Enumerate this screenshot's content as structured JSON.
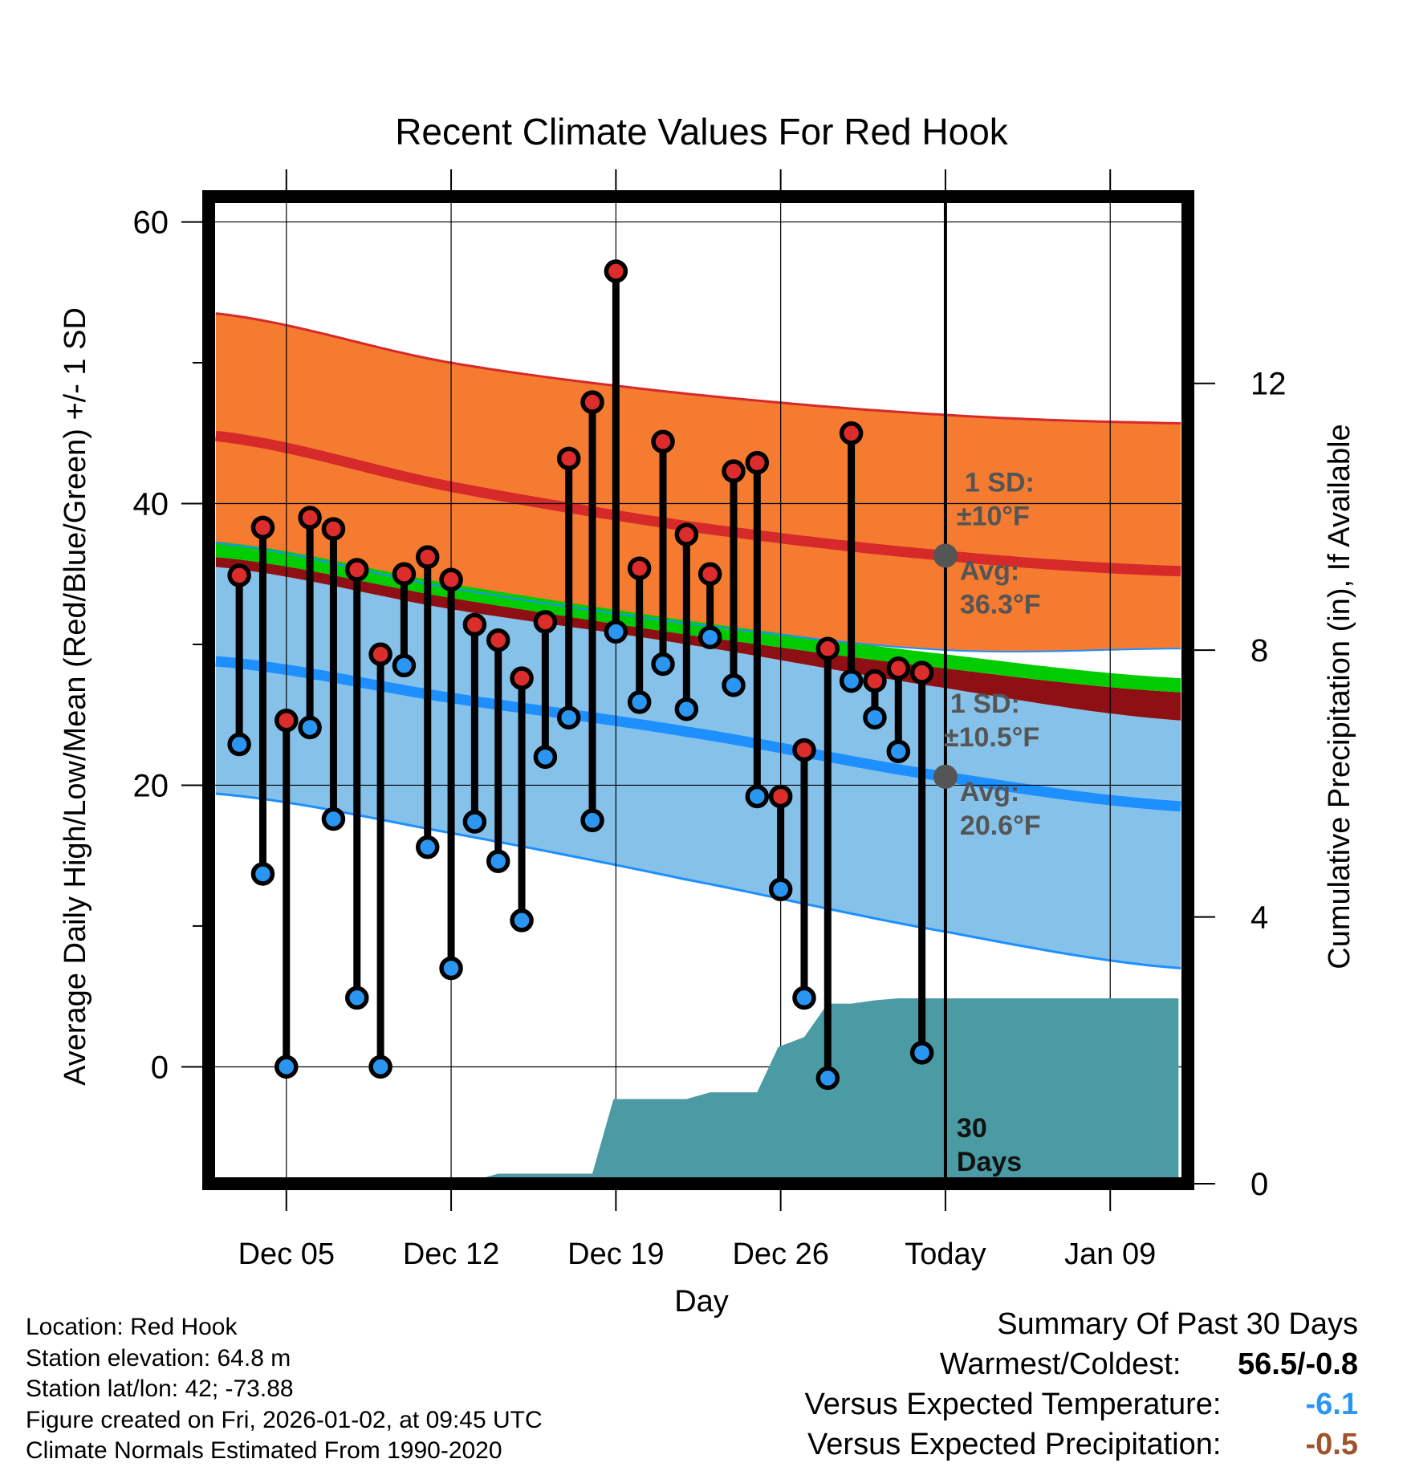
{
  "chart_data": {
    "type": "line",
    "title": "Recent Climate Values For Red Hook",
    "xlabel": "Day",
    "ylabel": "Average Daily High/Low/Mean (Red/Blue/Green) +/- 1 SD",
    "y2label": "Cumulative Precipitation (in), If Available",
    "x_tick_labels": [
      "Dec 05",
      "Dec 12",
      "Dec 19",
      "Dec 26",
      "Today",
      "Jan 09"
    ],
    "x_tick_days": [
      3,
      10,
      17,
      24,
      31,
      38
    ],
    "xlim": [
      -0.3,
      41.3
    ],
    "ylim": [
      -8.3,
      61.8
    ],
    "y_ticks": [
      0,
      20,
      40,
      60
    ],
    "y_minor_ticks": [
      10,
      30,
      50
    ],
    "y2lim": [
      0,
      14.8
    ],
    "y2_ticks": [
      0,
      4,
      8,
      12
    ],
    "grid": true,
    "today_day": 31,
    "normals": {
      "days": [
        0,
        10,
        20,
        31,
        41
      ],
      "high_mean": [
        44.8,
        41.2,
        38.4,
        36.3,
        35.2
      ],
      "high_upper": [
        53.5,
        50.0,
        47.8,
        46.3,
        45.7
      ],
      "high_lower": [
        37.2,
        34.0,
        31.5,
        29.6,
        29.7
      ],
      "mean_upper": [
        37.3,
        34.3,
        31.7,
        29.3,
        27.6
      ],
      "mean_lower": [
        36.2,
        33.3,
        30.7,
        28.3,
        26.6
      ],
      "low_mean": [
        28.8,
        26.2,
        23.8,
        20.6,
        18.5
      ],
      "low_upper": [
        35.5,
        32.5,
        30.0,
        26.9,
        24.6
      ],
      "low_lower": [
        19.4,
        16.6,
        13.3,
        9.6,
        7.0
      ]
    },
    "series": [
      {
        "name": "Daily High",
        "days": [
          1,
          2,
          3,
          4,
          5,
          6,
          7,
          8,
          9,
          10,
          11,
          12,
          13,
          14,
          15,
          16,
          17,
          18,
          19,
          20,
          21,
          22,
          23,
          24,
          25,
          26,
          27,
          28,
          29,
          30
        ],
        "values": [
          34.9,
          38.3,
          24.6,
          39.0,
          38.2,
          35.3,
          29.3,
          35.0,
          36.2,
          34.6,
          31.4,
          30.3,
          27.6,
          31.6,
          43.2,
          47.2,
          56.5,
          35.4,
          44.4,
          37.8,
          35.0,
          42.3,
          42.9,
          19.2,
          22.5,
          29.7,
          45.0,
          27.4,
          28.3,
          28.0
        ]
      },
      {
        "name": "Daily Low",
        "days": [
          1,
          2,
          3,
          4,
          5,
          6,
          7,
          8,
          9,
          10,
          11,
          12,
          13,
          14,
          15,
          16,
          17,
          18,
          19,
          20,
          21,
          22,
          23,
          24,
          25,
          26,
          27,
          28,
          29,
          30
        ],
        "values": [
          22.9,
          13.7,
          0.0,
          24.1,
          17.6,
          4.9,
          0.0,
          28.5,
          15.6,
          7.0,
          17.4,
          14.6,
          10.4,
          22.0,
          24.8,
          17.5,
          30.9,
          25.9,
          28.6,
          25.4,
          30.5,
          27.1,
          19.2,
          12.6,
          4.9,
          -0.8,
          27.4,
          24.8,
          22.4,
          1.0
        ]
      },
      {
        "name": "Cumulative Precipitation",
        "days": [
          0,
          7.5,
          8.0,
          10.5,
          11.0,
          12.0,
          15.0,
          16.0,
          16.9,
          20.0,
          21.0,
          23.0,
          23.9,
          25.0,
          26.0,
          27.0,
          28.0,
          29.0,
          30.0,
          40.9
        ],
        "values": [
          0,
          0,
          0.02,
          0.02,
          0.05,
          0.15,
          0.15,
          0.15,
          1.27,
          1.27,
          1.37,
          1.37,
          2.05,
          2.2,
          2.7,
          2.7,
          2.75,
          2.78,
          2.78,
          2.78
        ]
      }
    ],
    "annotations": {
      "high_sd_label_1": "1 SD:",
      "high_sd_label_2": "±10°F",
      "high_avg_label_1": "Avg:",
      "high_avg_label_2": "36.3°F",
      "high_avg_value": 36.3,
      "low_sd_label_1": "1 SD:",
      "low_sd_label_2": "±10.5°F",
      "low_avg_label_1": "Avg:",
      "low_avg_label_2": "20.6°F",
      "low_avg_value": 20.6,
      "days_label_1": "30",
      "days_label_2": "Days"
    }
  },
  "colors": {
    "high_band": "#f47b30",
    "high_line": "#d62a2a",
    "mean_band_outer": "#8e1014",
    "mean_band": "#00cc00",
    "low_band": "#85c1e9",
    "low_line": "#1e8fff",
    "precip": "#4a9ba3",
    "high_dot": "#dd2c2c",
    "low_dot": "#2a96f2",
    "annotation": "#555555",
    "temp_anomaly": "#2a96f2",
    "precip_anomaly": "#a0522d"
  },
  "info": {
    "location": "Location: Red Hook",
    "elevation": "Station elevation: 64.8 m",
    "latlon": "Station lat/lon: 42; -73.88",
    "created": "Figure created on Fri, 2026-01-02, at 09:45 UTC",
    "normals": "Climate Normals Estimated From 1990-2020"
  },
  "summary": {
    "title": "Summary Of Past 30 Days",
    "warmest_coldest_label": "Warmest/Coldest:",
    "warmest_coldest_value": "56.5/-0.8",
    "temp_label": "Versus Expected Temperature:",
    "temp_value": "-6.1",
    "precip_label": "Versus Expected Precipitation:",
    "precip_value": "-0.5"
  }
}
